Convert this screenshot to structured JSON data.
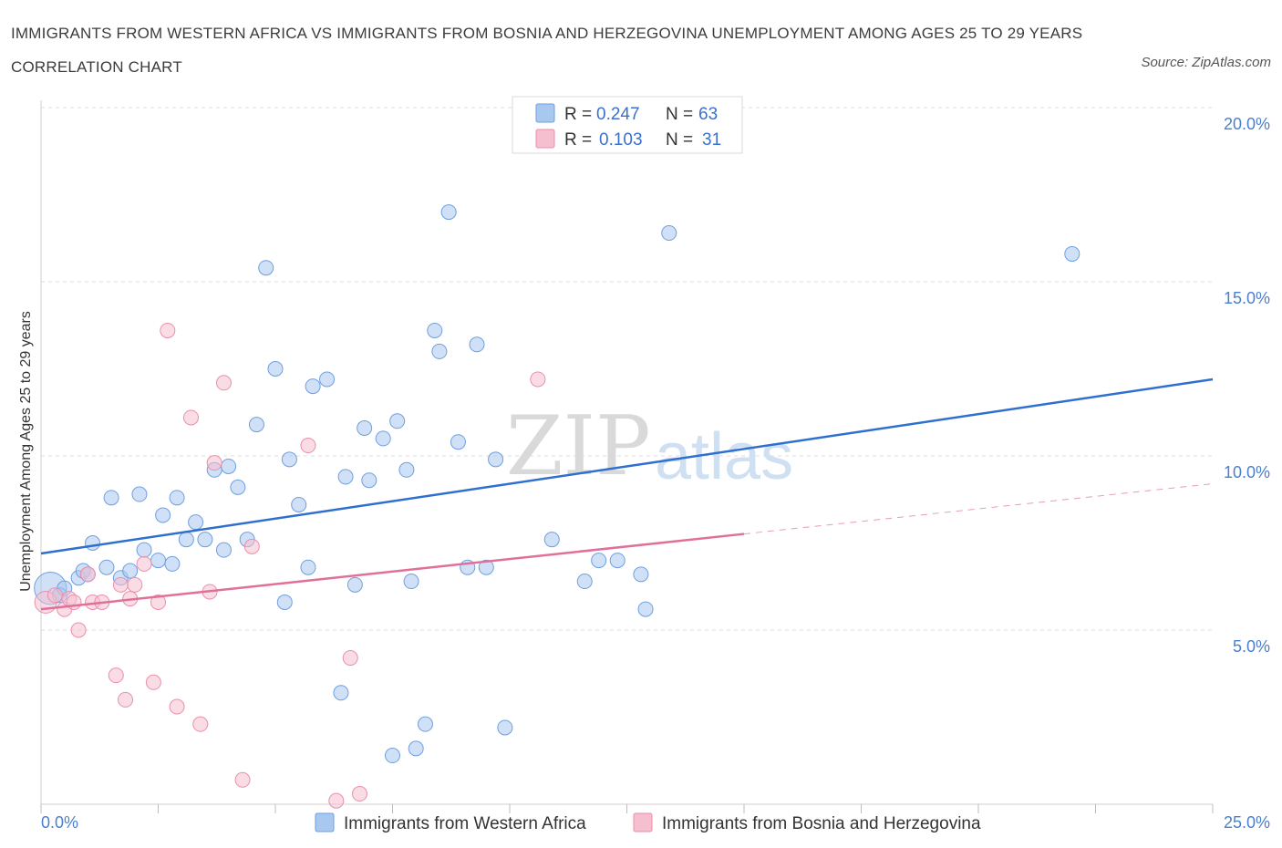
{
  "title": "IMMIGRANTS FROM WESTERN AFRICA VS IMMIGRANTS FROM BOSNIA AND HERZEGOVINA UNEMPLOYMENT AMONG AGES 25 TO 29 YEARS CORRELATION CHART",
  "source": "Source: ZipAtlas.com",
  "watermark": {
    "zip": "ZIP",
    "atlas": "atlas"
  },
  "colors": {
    "blue_fill": "#a9c8f0",
    "blue_stroke": "#6e9fe0",
    "blue_line": "#2f6fd0",
    "pink_fill": "#f6bfd0",
    "pink_stroke": "#eb8fab",
    "pink_line": "#e0709a",
    "grid": "#dcdcdc",
    "tick_text": "#4a7fd0"
  },
  "legend": {
    "rows": [
      {
        "r_label": "R =",
        "r_value": "0.247",
        "n_label": "N =",
        "n_value": "63",
        "color": "blue"
      },
      {
        "r_label": "R =",
        "r_value": "0.103",
        "n_label": "N =",
        "n_value": "31",
        "color": "pink"
      }
    ]
  },
  "chart_data": {
    "type": "scatter",
    "title": "IMMIGRANTS FROM WESTERN AFRICA VS IMMIGRANTS FROM BOSNIA AND HERZEGOVINA UNEMPLOYMENT AMONG AGES 25 TO 29 YEARS CORRELATION CHART",
    "xlabel": "",
    "ylabel": "Unemployment Among Ages 25 to 29 years",
    "xlim": [
      0,
      25
    ],
    "ylim": [
      0,
      20
    ],
    "x_tick_labels": [
      "0.0%",
      "25.0%"
    ],
    "y_ticks": [
      5,
      10,
      15,
      20
    ],
    "y_tick_labels": [
      "5.0%",
      "10.0%",
      "15.0%",
      "20.0%"
    ],
    "grid": true,
    "legend_position": "top-center",
    "series": [
      {
        "name": "Immigrants from Western Africa",
        "color": "blue",
        "R": 0.247,
        "N": 63,
        "trend": {
          "x0": 0,
          "y0": 7.2,
          "x1": 25,
          "y1": 12.2,
          "dashed_from": null
        },
        "points": [
          [
            0.2,
            6.2,
            2.2
          ],
          [
            0.4,
            6.0,
            1
          ],
          [
            0.5,
            6.2,
            1
          ],
          [
            0.8,
            6.5,
            1
          ],
          [
            0.9,
            6.7,
            1
          ],
          [
            1.0,
            6.6,
            1
          ],
          [
            1.1,
            7.5,
            1
          ],
          [
            1.4,
            6.8,
            1
          ],
          [
            1.5,
            8.8,
            1
          ],
          [
            1.7,
            6.5,
            1
          ],
          [
            1.9,
            6.7,
            1
          ],
          [
            2.1,
            8.9,
            1
          ],
          [
            2.2,
            7.3,
            1
          ],
          [
            2.5,
            7.0,
            1
          ],
          [
            2.6,
            8.3,
            1
          ],
          [
            2.8,
            6.9,
            1
          ],
          [
            2.9,
            8.8,
            1
          ],
          [
            3.1,
            7.6,
            1
          ],
          [
            3.3,
            8.1,
            1
          ],
          [
            3.5,
            7.6,
            1
          ],
          [
            3.7,
            9.6,
            1
          ],
          [
            3.9,
            7.3,
            1
          ],
          [
            4.0,
            9.7,
            1
          ],
          [
            4.2,
            9.1,
            1
          ],
          [
            4.4,
            7.6,
            1
          ],
          [
            4.6,
            10.9,
            1
          ],
          [
            4.8,
            15.4,
            1
          ],
          [
            5.0,
            12.5,
            1
          ],
          [
            5.2,
            5.8,
            1
          ],
          [
            5.3,
            9.9,
            1
          ],
          [
            5.5,
            8.6,
            1
          ],
          [
            5.7,
            6.8,
            1
          ],
          [
            5.8,
            12.0,
            1
          ],
          [
            6.1,
            12.2,
            1
          ],
          [
            6.4,
            3.2,
            1
          ],
          [
            6.5,
            9.4,
            1
          ],
          [
            6.7,
            6.3,
            1
          ],
          [
            6.9,
            10.8,
            1
          ],
          [
            7.0,
            9.3,
            1
          ],
          [
            7.3,
            10.5,
            1
          ],
          [
            7.5,
            1.4,
            1
          ],
          [
            7.6,
            11.0,
            1
          ],
          [
            7.8,
            9.6,
            1
          ],
          [
            7.9,
            6.4,
            1
          ],
          [
            8.0,
            1.6,
            1
          ],
          [
            8.2,
            2.3,
            1
          ],
          [
            8.4,
            13.6,
            1
          ],
          [
            8.5,
            13.0,
            1
          ],
          [
            8.7,
            17.0,
            1
          ],
          [
            8.9,
            10.4,
            1
          ],
          [
            9.1,
            6.8,
            1
          ],
          [
            9.3,
            13.2,
            1
          ],
          [
            9.5,
            6.8,
            1
          ],
          [
            9.7,
            9.9,
            1
          ],
          [
            9.9,
            2.2,
            1
          ],
          [
            10.9,
            7.6,
            1
          ],
          [
            11.6,
            6.4,
            1
          ],
          [
            11.9,
            7.0,
            1
          ],
          [
            12.3,
            7.0,
            1
          ],
          [
            12.8,
            6.6,
            1
          ],
          [
            12.9,
            5.6,
            1
          ],
          [
            13.4,
            16.4,
            1
          ],
          [
            22.0,
            15.8,
            1
          ]
        ]
      },
      {
        "name": "Immigrants from Bosnia and Herzegovina",
        "color": "pink",
        "R": 0.103,
        "N": 31,
        "trend": {
          "x0": 0,
          "y0": 5.6,
          "x1": 25,
          "y1": 9.2,
          "solid_until": 15
        },
        "points": [
          [
            0.1,
            5.8,
            1.5
          ],
          [
            0.3,
            6.0,
            1
          ],
          [
            0.5,
            5.6,
            1
          ],
          [
            0.6,
            5.9,
            1
          ],
          [
            0.7,
            5.8,
            1
          ],
          [
            0.8,
            5.0,
            1
          ],
          [
            1.0,
            6.6,
            1
          ],
          [
            1.1,
            5.8,
            1
          ],
          [
            1.3,
            5.8,
            1
          ],
          [
            1.6,
            3.7,
            1
          ],
          [
            1.7,
            6.3,
            1
          ],
          [
            1.8,
            3.0,
            1
          ],
          [
            1.9,
            5.9,
            1
          ],
          [
            2.0,
            6.3,
            1
          ],
          [
            2.2,
            6.9,
            1
          ],
          [
            2.4,
            3.5,
            1
          ],
          [
            2.5,
            5.8,
            1
          ],
          [
            2.7,
            13.6,
            1
          ],
          [
            2.9,
            2.8,
            1
          ],
          [
            3.2,
            11.1,
            1
          ],
          [
            3.4,
            2.3,
            1
          ],
          [
            3.6,
            6.1,
            1
          ],
          [
            3.7,
            9.8,
            1
          ],
          [
            3.9,
            12.1,
            1
          ],
          [
            4.3,
            0.7,
            1
          ],
          [
            4.5,
            7.4,
            1
          ],
          [
            5.7,
            10.3,
            1
          ],
          [
            6.3,
            0.1,
            1
          ],
          [
            6.6,
            4.2,
            1
          ],
          [
            6.8,
            0.3,
            1
          ],
          [
            10.6,
            12.2,
            1
          ]
        ]
      }
    ]
  },
  "bottom_legend": [
    {
      "label": "Immigrants from Western Africa",
      "color": "blue"
    },
    {
      "label": "Immigrants from Bosnia and Herzegovina",
      "color": "pink"
    }
  ]
}
